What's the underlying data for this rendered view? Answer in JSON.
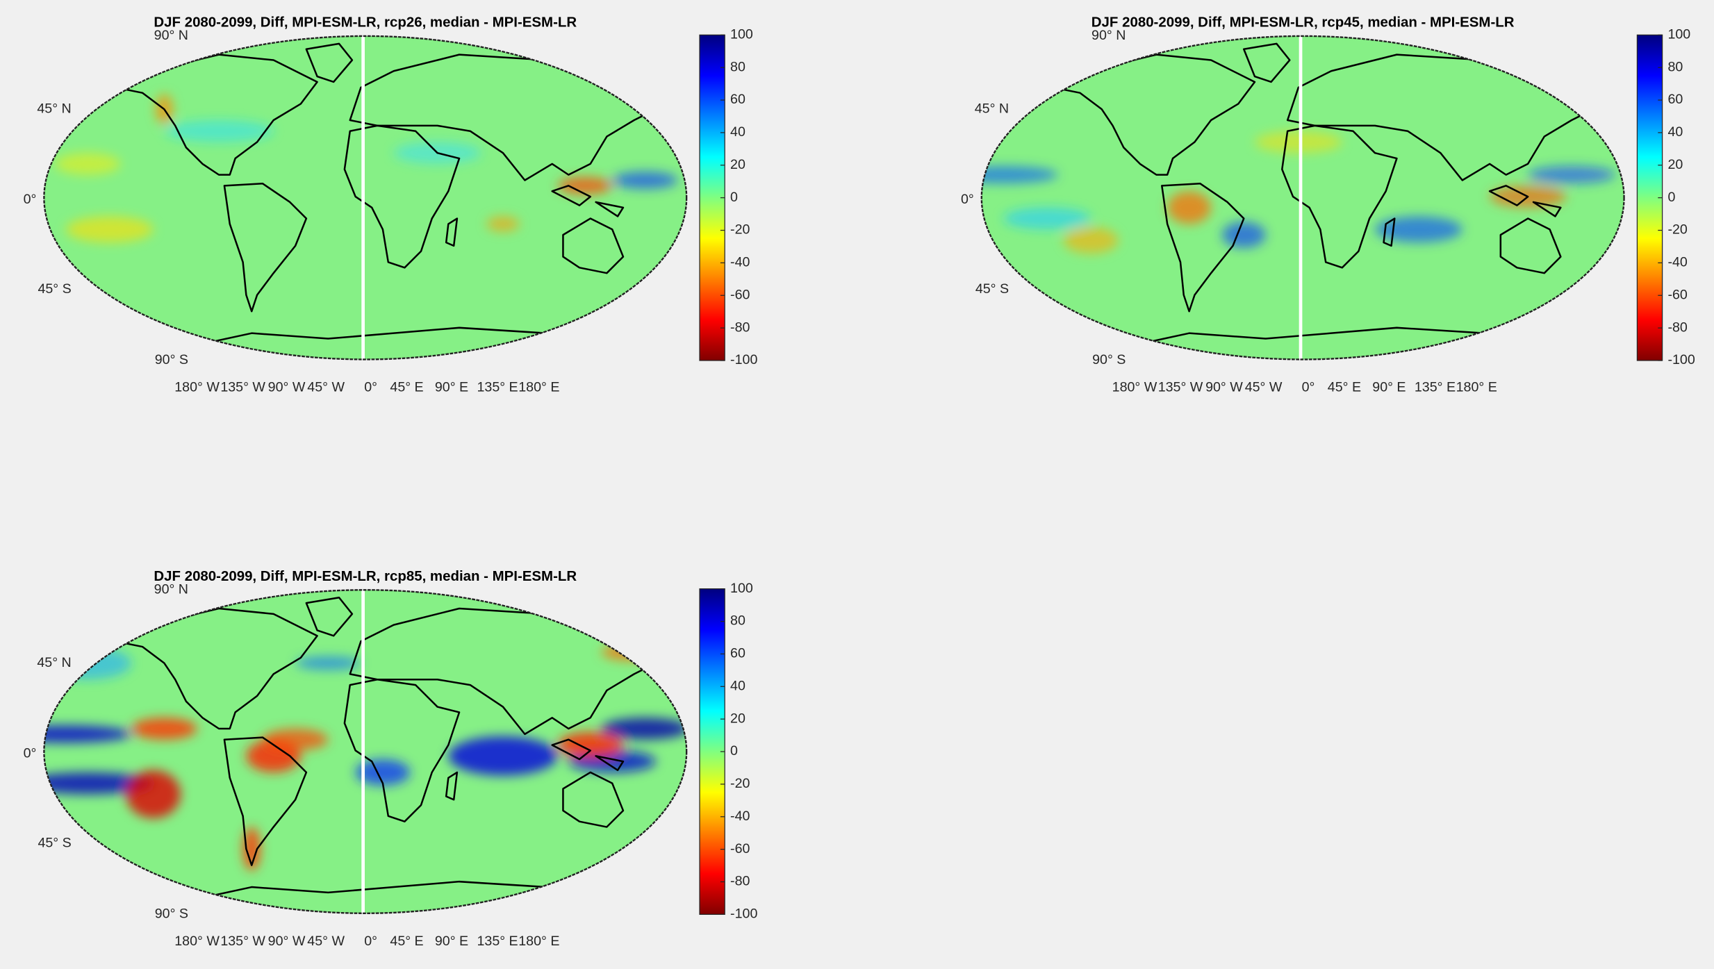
{
  "panels": [
    {
      "title": "DJF 2080-2099, Diff, MPI-ESM-LR, rcp26, median - MPI-ESM-LR",
      "lat_labels": [
        "90° N",
        "45° N",
        "0°",
        "45° S",
        "90° S"
      ],
      "lon_labels": [
        "180° W",
        "135° W",
        "90° W",
        "45° W",
        "0°",
        "45° E",
        "90° E",
        "135° E",
        "180° E"
      ],
      "clim": [
        -100,
        100
      ],
      "colorbar_ticks": [
        100,
        80,
        60,
        40,
        20,
        0,
        -20,
        -40,
        -60,
        -80,
        -100
      ]
    },
    {
      "title": "DJF 2080-2099, Diff, MPI-ESM-LR, rcp45, median - MPI-ESM-LR",
      "lat_labels": [
        "90° N",
        "45° N",
        "0°",
        "45° S",
        "90° S"
      ],
      "lon_labels": [
        "180° W",
        "135° W",
        "90° W",
        "45° W",
        "0°",
        "45° E",
        "90° E",
        "135° E",
        "180° E"
      ],
      "clim": [
        -100,
        100
      ],
      "colorbar_ticks": [
        100,
        80,
        60,
        40,
        20,
        0,
        -20,
        -40,
        -60,
        -80,
        -100
      ]
    },
    {
      "title": "DJF 2080-2099, Diff, MPI-ESM-LR, rcp85, median - MPI-ESM-LR",
      "lat_labels": [
        "90° N",
        "45° N",
        "0°",
        "45° S",
        "90° S"
      ],
      "lon_labels": [
        "180° W",
        "135° W",
        "90° W",
        "45° W",
        "0°",
        "45° E",
        "90° E",
        "135° E",
        "180° E"
      ],
      "clim": [
        -100,
        100
      ],
      "colorbar_ticks": [
        100,
        80,
        60,
        40,
        20,
        0,
        -20,
        -40,
        -60,
        -80,
        -100
      ]
    }
  ]
}
